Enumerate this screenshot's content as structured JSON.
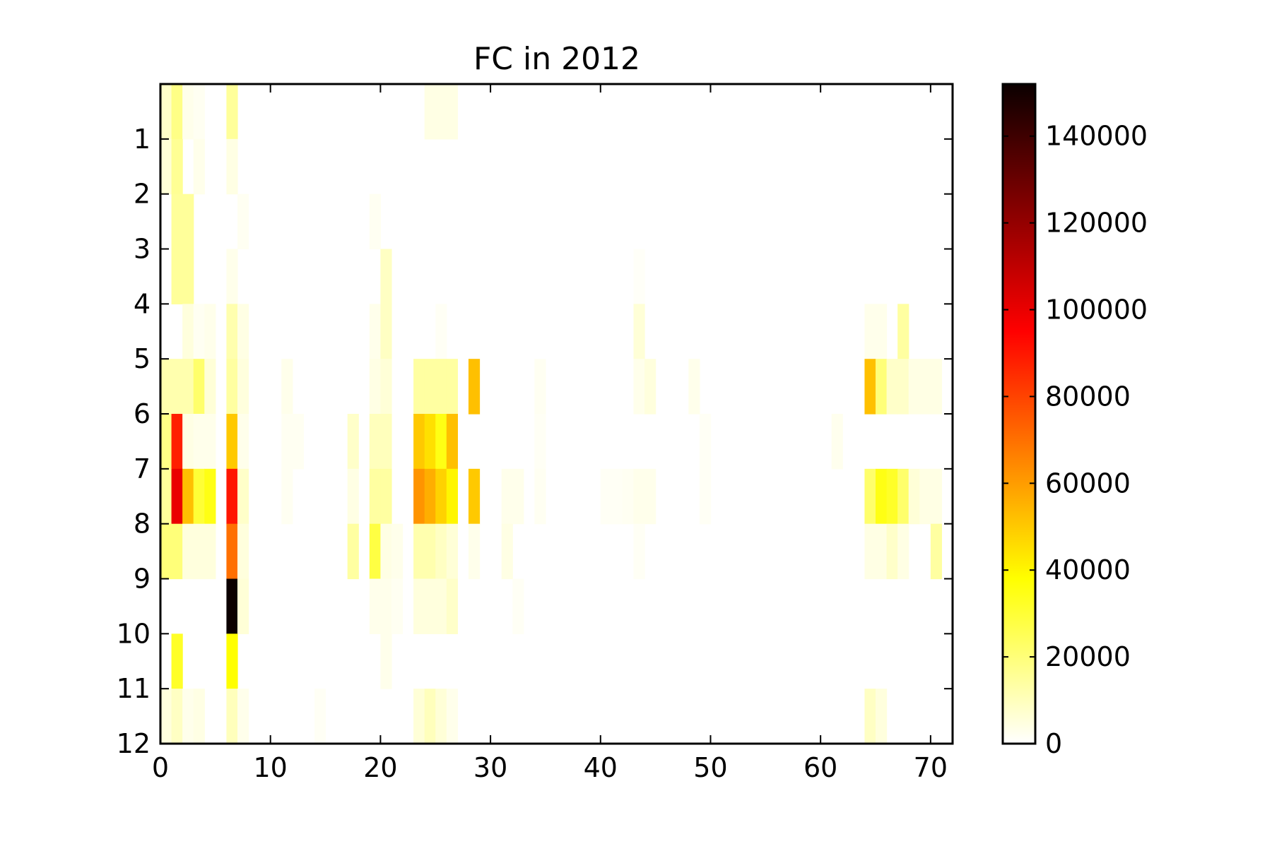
{
  "chart_data": {
    "type": "heatmap",
    "title": "FC in 2012",
    "xlabel": "",
    "ylabel": "",
    "xlim": [
      0,
      72
    ],
    "ylim_top_to_bottom": [
      0,
      12
    ],
    "x_ticks": [
      0,
      10,
      20,
      30,
      40,
      50,
      60,
      70
    ],
    "y_ticks": [
      1,
      2,
      3,
      4,
      5,
      6,
      7,
      8,
      9,
      10,
      11,
      12
    ],
    "colormap": "hot_r",
    "colorbar": {
      "range": [
        0,
        152000
      ],
      "ticks": [
        0,
        20000,
        40000,
        60000,
        80000,
        100000,
        120000,
        140000
      ]
    },
    "grid": false,
    "rows": 12,
    "columns": 72,
    "nonzero_cells": [
      [
        0,
        0,
        8000
      ],
      [
        0,
        1,
        18000
      ],
      [
        0,
        2,
        3000
      ],
      [
        0,
        3,
        2000
      ],
      [
        0,
        6,
        15000
      ],
      [
        0,
        24,
        4000
      ],
      [
        0,
        25,
        4000
      ],
      [
        0,
        26,
        4000
      ],
      [
        1,
        0,
        6000
      ],
      [
        1,
        1,
        16000
      ],
      [
        1,
        3,
        3000
      ],
      [
        1,
        6,
        4000
      ],
      [
        2,
        1,
        15000
      ],
      [
        2,
        2,
        15000
      ],
      [
        2,
        7,
        2000
      ],
      [
        2,
        19,
        2000
      ],
      [
        3,
        1,
        15000
      ],
      [
        3,
        2,
        15000
      ],
      [
        3,
        6,
        3000
      ],
      [
        3,
        20,
        9000
      ],
      [
        3,
        43,
        1000
      ],
      [
        4,
        2,
        5000
      ],
      [
        4,
        3,
        2000
      ],
      [
        4,
        4,
        3000
      ],
      [
        4,
        6,
        12000
      ],
      [
        4,
        7,
        4000
      ],
      [
        4,
        19,
        3000
      ],
      [
        4,
        20,
        9000
      ],
      [
        4,
        25,
        1500
      ],
      [
        4,
        43,
        6000
      ],
      [
        4,
        64,
        3000
      ],
      [
        4,
        65,
        3000
      ],
      [
        4,
        67,
        14000
      ],
      [
        5,
        0,
        12000
      ],
      [
        5,
        1,
        12000
      ],
      [
        5,
        2,
        12000
      ],
      [
        5,
        3,
        22000
      ],
      [
        5,
        4,
        6000
      ],
      [
        5,
        6,
        14000
      ],
      [
        5,
        7,
        5000
      ],
      [
        5,
        11,
        3000
      ],
      [
        5,
        19,
        4000
      ],
      [
        5,
        20,
        6000
      ],
      [
        5,
        23,
        14000
      ],
      [
        5,
        24,
        14000
      ],
      [
        5,
        25,
        14000
      ],
      [
        5,
        26,
        14000
      ],
      [
        5,
        28,
        52000
      ],
      [
        5,
        34,
        2000
      ],
      [
        5,
        43,
        3000
      ],
      [
        5,
        44,
        5000
      ],
      [
        5,
        48,
        3000
      ],
      [
        5,
        64,
        52000
      ],
      [
        5,
        65,
        20000
      ],
      [
        5,
        66,
        8000
      ],
      [
        5,
        67,
        8000
      ],
      [
        5,
        68,
        4000
      ],
      [
        5,
        69,
        4000
      ],
      [
        5,
        70,
        4000
      ],
      [
        6,
        0,
        18000
      ],
      [
        6,
        1,
        88000
      ],
      [
        6,
        2,
        4000
      ],
      [
        6,
        3,
        3000
      ],
      [
        6,
        4,
        3000
      ],
      [
        6,
        6,
        50000
      ],
      [
        6,
        7,
        3000
      ],
      [
        6,
        11,
        2000
      ],
      [
        6,
        12,
        2000
      ],
      [
        6,
        17,
        8000
      ],
      [
        6,
        19,
        10000
      ],
      [
        6,
        20,
        10000
      ],
      [
        6,
        23,
        50000
      ],
      [
        6,
        24,
        45000
      ],
      [
        6,
        25,
        35000
      ],
      [
        6,
        26,
        52000
      ],
      [
        6,
        34,
        1500
      ],
      [
        6,
        49,
        1500
      ],
      [
        6,
        61,
        2500
      ],
      [
        7,
        0,
        15000
      ],
      [
        7,
        1,
        100000
      ],
      [
        7,
        2,
        52000
      ],
      [
        7,
        3,
        30000
      ],
      [
        7,
        4,
        35000
      ],
      [
        7,
        6,
        90000
      ],
      [
        7,
        7,
        8000
      ],
      [
        7,
        11,
        2000
      ],
      [
        7,
        17,
        4000
      ],
      [
        7,
        19,
        14000
      ],
      [
        7,
        20,
        14000
      ],
      [
        7,
        23,
        62000
      ],
      [
        7,
        24,
        56000
      ],
      [
        7,
        25,
        48000
      ],
      [
        7,
        26,
        40000
      ],
      [
        7,
        28,
        50000
      ],
      [
        7,
        31,
        3000
      ],
      [
        7,
        32,
        3000
      ],
      [
        7,
        34,
        2000
      ],
      [
        7,
        40,
        1500
      ],
      [
        7,
        41,
        1500
      ],
      [
        7,
        42,
        2000
      ],
      [
        7,
        43,
        3000
      ],
      [
        7,
        44,
        3000
      ],
      [
        7,
        49,
        1500
      ],
      [
        7,
        64,
        22000
      ],
      [
        7,
        65,
        35000
      ],
      [
        7,
        66,
        32000
      ],
      [
        7,
        67,
        22000
      ],
      [
        7,
        68,
        6000
      ],
      [
        7,
        69,
        4000
      ],
      [
        7,
        70,
        4000
      ],
      [
        8,
        0,
        20000
      ],
      [
        8,
        1,
        20000
      ],
      [
        8,
        2,
        5000
      ],
      [
        8,
        3,
        5000
      ],
      [
        8,
        4,
        5000
      ],
      [
        8,
        6,
        70000
      ],
      [
        8,
        7,
        5000
      ],
      [
        8,
        17,
        14000
      ],
      [
        8,
        19,
        28000
      ],
      [
        8,
        20,
        4000
      ],
      [
        8,
        21,
        3000
      ],
      [
        8,
        23,
        12000
      ],
      [
        8,
        24,
        12000
      ],
      [
        8,
        25,
        9000
      ],
      [
        8,
        26,
        6000
      ],
      [
        8,
        28,
        3000
      ],
      [
        8,
        31,
        4000
      ],
      [
        8,
        43,
        1500
      ],
      [
        8,
        64,
        4000
      ],
      [
        8,
        65,
        4000
      ],
      [
        8,
        66,
        8000
      ],
      [
        8,
        67,
        4000
      ],
      [
        8,
        70,
        14000
      ],
      [
        9,
        6,
        152000
      ],
      [
        9,
        7,
        6000
      ],
      [
        9,
        19,
        3000
      ],
      [
        9,
        20,
        3000
      ],
      [
        9,
        21,
        2000
      ],
      [
        9,
        23,
        5000
      ],
      [
        9,
        24,
        5000
      ],
      [
        9,
        25,
        5000
      ],
      [
        9,
        26,
        8000
      ],
      [
        9,
        32,
        1500
      ],
      [
        10,
        1,
        32000
      ],
      [
        10,
        6,
        38000
      ],
      [
        10,
        20,
        3000
      ],
      [
        11,
        0,
        5000
      ],
      [
        11,
        1,
        9000
      ],
      [
        11,
        2,
        3000
      ],
      [
        11,
        3,
        4000
      ],
      [
        11,
        6,
        10000
      ],
      [
        11,
        7,
        3000
      ],
      [
        11,
        14,
        1500
      ],
      [
        11,
        23,
        6000
      ],
      [
        11,
        24,
        10000
      ],
      [
        11,
        25,
        6000
      ],
      [
        11,
        26,
        3000
      ],
      [
        11,
        64,
        9000
      ],
      [
        11,
        65,
        5000
      ]
    ]
  }
}
